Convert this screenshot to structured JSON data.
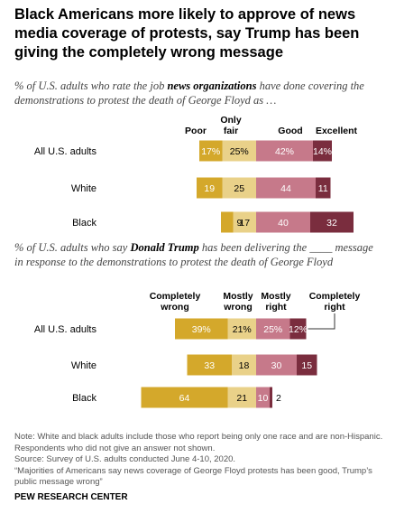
{
  "title": "Black Americans more likely to approve of news media coverage of protests, say Trump has been giving the completely wrong message",
  "chart_data": [
    {
      "type": "bar",
      "subtype": "diverging-stacked-horizontal",
      "subtitle_before": "% of U.S. adults who rate the job ",
      "subtitle_bold": "news organizations",
      "subtitle_after": " have done covering the demonstrations to protest the death of George Floyd as …",
      "categories": [
        "All U.S. adults",
        "White",
        "Black"
      ],
      "series": [
        {
          "name": "Poor",
          "side": "negative",
          "color": "#d4a82b",
          "values": [
            17,
            19,
            9
          ],
          "labels": [
            "17%",
            "19",
            "9"
          ]
        },
        {
          "name": "Only fair",
          "side": "negative",
          "color": "#e9d189",
          "values": [
            25,
            25,
            17
          ],
          "labels": [
            "25%",
            "25",
            "17"
          ]
        },
        {
          "name": "Good",
          "side": "positive",
          "color": "#c6798a",
          "values": [
            42,
            44,
            40
          ],
          "labels": [
            "42%",
            "44",
            "40"
          ]
        },
        {
          "name": "Excellent",
          "side": "positive",
          "color": "#7a2d3e",
          "values": [
            14,
            11,
            32
          ],
          "labels": [
            "14%",
            "11",
            "32"
          ]
        }
      ]
    },
    {
      "type": "bar",
      "subtype": "diverging-stacked-horizontal",
      "subtitle_before": "% of U.S. adults who say ",
      "subtitle_bold": "Donald Trump",
      "subtitle_after": " has been delivering the ____ message in response to the demonstrations to protest the death of George Floyd",
      "categories": [
        "All U.S. adults",
        "White",
        "Black"
      ],
      "series": [
        {
          "name": "Completely wrong",
          "side": "negative",
          "color": "#d4a82b",
          "values": [
            39,
            33,
            64
          ],
          "labels": [
            "39%",
            "33",
            "64"
          ]
        },
        {
          "name": "Mostly wrong",
          "side": "negative",
          "color": "#e9d189",
          "values": [
            21,
            18,
            21
          ],
          "labels": [
            "21%",
            "18",
            "21"
          ]
        },
        {
          "name": "Mostly right",
          "side": "positive",
          "color": "#c6798a",
          "values": [
            25,
            30,
            10
          ],
          "labels": [
            "25%",
            "30",
            "10"
          ]
        },
        {
          "name": "Completely right",
          "side": "positive",
          "color": "#7a2d3e",
          "values": [
            12,
            15,
            2
          ],
          "labels": [
            "12%",
            "15",
            "2"
          ]
        }
      ]
    }
  ],
  "notes": [
    "Note: White and black adults include those who report being only one race and are non-Hispanic. Respondents who did not give an answer not shown.",
    "Source: Survey of U.S. adults conducted June 4-10, 2020.",
    "“Majorities of Americans say news coverage of George Floyd protests has been good, Trump’s public message wrong”"
  ],
  "brand": "PEW RESEARCH CENTER"
}
